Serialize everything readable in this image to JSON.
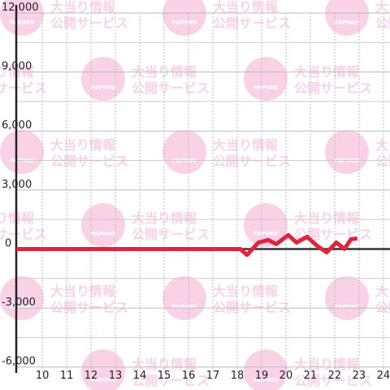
{
  "chart_data": {
    "type": "line",
    "watermark": {
      "line1": "大当り情報",
      "line2": "公開サービス",
      "logo": "PAPIMO"
    },
    "x": [
      8.93,
      18.13,
      18.4,
      18.87,
      19.27,
      19.6,
      20.1,
      20.43,
      20.87,
      21.27,
      21.67,
      22.07,
      22.4,
      22.67,
      22.93
    ],
    "series": [
      {
        "color": "#e0243c",
        "values": [
          0,
          0,
          -300,
          330,
          460,
          250,
          710,
          330,
          620,
          170,
          -170,
          330,
          0,
          500,
          540
        ]
      }
    ],
    "xlim": [
      8.93,
      24.27
    ],
    "xticks": [
      10,
      11,
      12,
      13,
      14,
      15,
      16,
      17,
      18,
      19,
      20,
      21,
      22,
      23,
      24
    ],
    "ylim": [
      -6300,
      12000
    ],
    "yticks": [
      {
        "value": 12000,
        "label": "12,000"
      },
      {
        "value": 9000,
        "label": "9,000"
      },
      {
        "value": 6000,
        "label": "6,000"
      },
      {
        "value": 3000,
        "label": "3,000"
      },
      0,
      {
        "value": -3000,
        "label": "-3,000"
      },
      {
        "value": -6000,
        "label": "-6,000"
      }
    ],
    "y_minor_ticks": [
      10500,
      7500,
      4500,
      1500,
      -1500,
      -4500
    ],
    "grid": true
  }
}
